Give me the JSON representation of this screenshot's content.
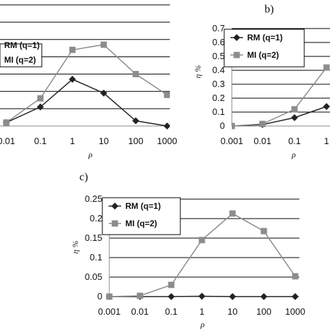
{
  "colors": {
    "rm": "#222222",
    "mi": "#8c8c8c",
    "grid": "#000000",
    "axis": "#888888"
  },
  "chart_data": [
    {
      "id": "a",
      "type": "line",
      "panel_label": "",
      "xlabel": "ρ",
      "ylabel": "",
      "categories": [
        "0.01",
        "0.1",
        "1",
        "10",
        "100",
        "1000"
      ],
      "ylim": [
        0,
        0.7
      ],
      "grid": true,
      "legend": {
        "placement": "top-left",
        "entries": [
          "RM (q=1)",
          "MI (q=2)"
        ]
      },
      "series": [
        {
          "name": "RM (q=1)",
          "marker": "diamond",
          "values": [
            0.02,
            0.11,
            0.27,
            0.19,
            0.03,
            0.0
          ]
        },
        {
          "name": "MI (q=2)",
          "marker": "square",
          "values": [
            0.02,
            0.16,
            0.44,
            0.47,
            0.3,
            0.18
          ]
        }
      ]
    },
    {
      "id": "b",
      "type": "line",
      "panel_label": "b)",
      "xlabel": "ρ",
      "ylabel": "η %",
      "categories": [
        "0.001",
        "0.01",
        "0.1",
        "1"
      ],
      "yticks": [
        "0",
        "0.1",
        "0.2",
        "0.3",
        "0.4",
        "0.5",
        "0.6",
        "0.7"
      ],
      "ylim": [
        0,
        0.7
      ],
      "grid": true,
      "legend": {
        "placement": "top-left",
        "entries": [
          "RM (q=1)",
          "MI (q=2)"
        ]
      },
      "series": [
        {
          "name": "RM (q=1)",
          "marker": "diamond",
          "values": [
            0.0,
            0.01,
            0.06,
            0.14
          ]
        },
        {
          "name": "MI (q=2)",
          "marker": "square",
          "values": [
            0.0,
            0.015,
            0.12,
            0.42
          ]
        }
      ]
    },
    {
      "id": "c",
      "type": "line",
      "panel_label": "c)",
      "xlabel": "ρ",
      "ylabel": "η %",
      "categories": [
        "0.001",
        "0.01",
        "0.1",
        "1",
        "10",
        "100",
        "1000"
      ],
      "yticks": [
        "0",
        "0.05",
        "0.1",
        "0.15",
        "0.2",
        "0.25"
      ],
      "ylim": [
        0,
        0.25
      ],
      "grid": true,
      "legend": {
        "placement": "top-left",
        "entries": [
          "RM (q=1)",
          "MI (q=2)"
        ]
      },
      "series": [
        {
          "name": "RM (q=1)",
          "marker": "diamond",
          "values": [
            0.0,
            0.0,
            0.0,
            0.001,
            0.0,
            0.0,
            0.0
          ]
        },
        {
          "name": "MI (q=2)",
          "marker": "square",
          "values": [
            0.0,
            0.002,
            0.03,
            0.145,
            0.213,
            0.168,
            0.052
          ]
        }
      ]
    }
  ]
}
